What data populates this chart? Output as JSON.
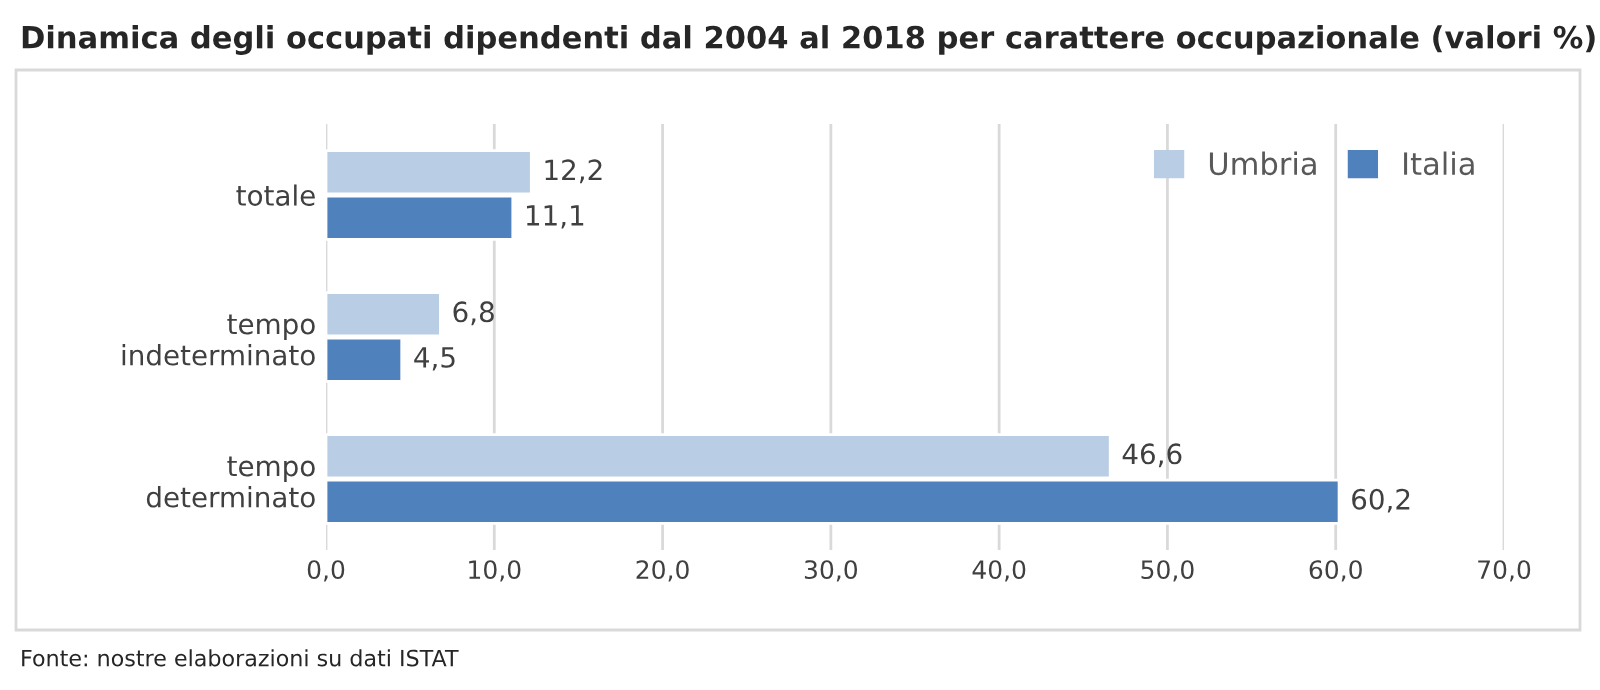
{
  "chart_data": {
    "type": "bar",
    "orientation": "horizontal",
    "title": "Dinamica degli occupati dipendenti dal 2004 al 2018 per carattere occupazionale (valori %)",
    "categories": [
      "totale",
      "tempo\nindeterminato",
      "tempo\ndeterminato"
    ],
    "series": [
      {
        "name": "Umbria",
        "color": "#b9cde5",
        "values": [
          12.2,
          6.8,
          46.6
        ],
        "value_labels": [
          "12,2",
          "6,8",
          "46,6"
        ]
      },
      {
        "name": "Italia",
        "color": "#4f81bd",
        "values": [
          11.1,
          4.5,
          60.2
        ],
        "value_labels": [
          "11,1",
          "4,5",
          "60,2"
        ]
      }
    ],
    "xlim": [
      0,
      70
    ],
    "xticks": [
      {
        "value": 0,
        "label": "0,0"
      },
      {
        "value": 10,
        "label": "10,0"
      },
      {
        "value": 20,
        "label": "20,0"
      },
      {
        "value": 30,
        "label": "30,0"
      },
      {
        "value": 40,
        "label": "40,0"
      },
      {
        "value": 50,
        "label": "50,0"
      },
      {
        "value": 60,
        "label": "60,0"
      },
      {
        "value": 70,
        "label": "70,0"
      }
    ],
    "grid": "x",
    "legend": "top right",
    "annotations": [
      "Fonte: nostre elaborazioni su dati ISTAT"
    ]
  }
}
